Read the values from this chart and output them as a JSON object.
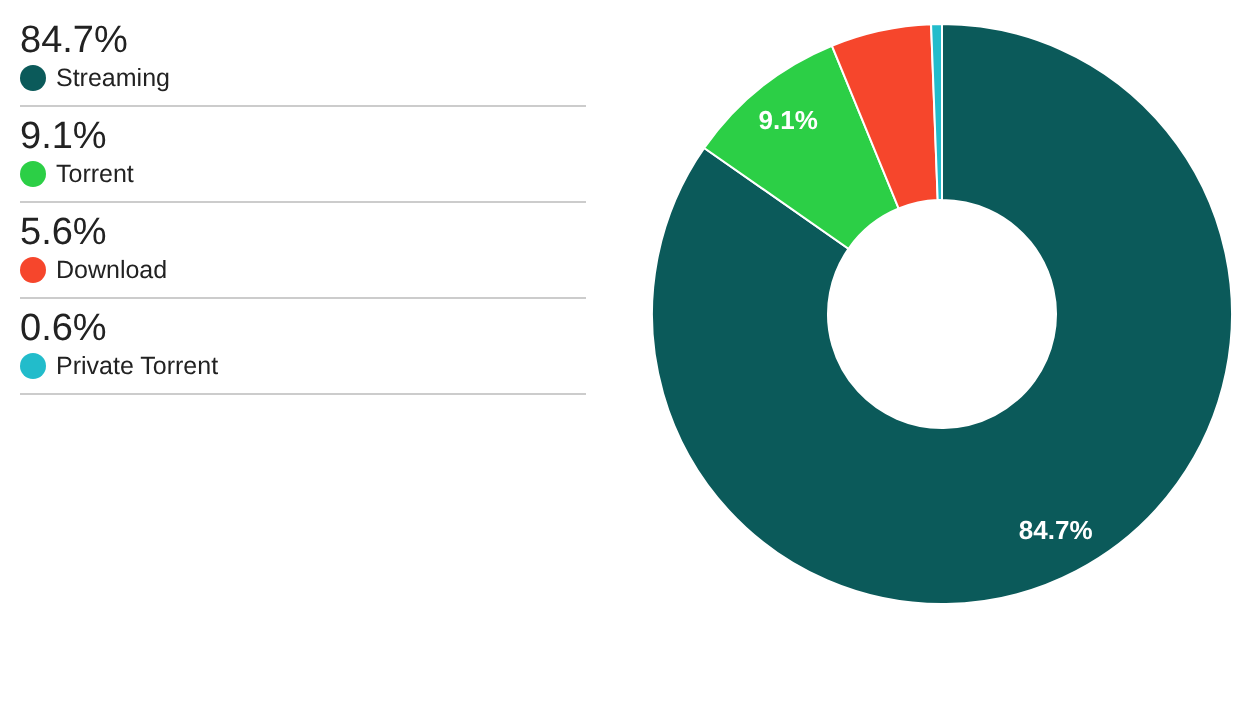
{
  "chart_data": {
    "type": "donut",
    "categories": [
      "Streaming",
      "Torrent",
      "Download",
      "Private Torrent"
    ],
    "values": [
      84.7,
      9.1,
      5.6,
      0.6
    ],
    "colors": [
      "#0b5a5a",
      "#2ccf46",
      "#f6462c",
      "#22bccb"
    ],
    "value_labels": [
      "84.7%",
      "9.1%",
      "5.6%",
      "0.6%"
    ],
    "legend": "left"
  }
}
